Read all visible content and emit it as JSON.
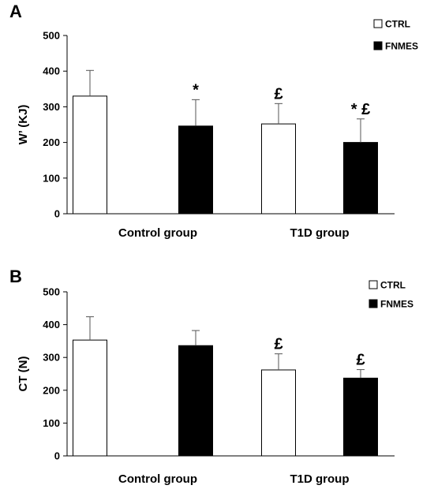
{
  "chart_data": [
    {
      "type": "bar",
      "panel": "A",
      "ylabel": "W’ (KJ)",
      "ylim": [
        0,
        500
      ],
      "yticks": [
        0,
        100,
        200,
        300,
        400,
        500
      ],
      "categories": [
        "Control group",
        "T1D group"
      ],
      "series": [
        {
          "name": "CTRL",
          "color": "#ffffff",
          "values": [
            330,
            252
          ],
          "errors": [
            72,
            57
          ]
        },
        {
          "name": "FNMES",
          "color": "#000000",
          "values": [
            246,
            200
          ],
          "errors": [
            74,
            66
          ]
        }
      ],
      "annotations": [
        [
          "",
          "£"
        ],
        [
          "*",
          "* £"
        ]
      ],
      "legend": "top-right",
      "grid": false
    },
    {
      "type": "bar",
      "panel": "B",
      "ylabel": "CT (N)",
      "ylim": [
        0,
        500
      ],
      "yticks": [
        0,
        100,
        200,
        300,
        400,
        500
      ],
      "categories": [
        "Control group",
        "T1D group"
      ],
      "series": [
        {
          "name": "CTRL",
          "color": "#ffffff",
          "values": [
            353,
            262
          ],
          "errors": [
            71,
            49
          ]
        },
        {
          "name": "FNMES",
          "color": "#000000",
          "values": [
            336,
            237
          ],
          "errors": [
            46,
            26
          ]
        }
      ],
      "annotations": [
        [
          "",
          "£"
        ],
        [
          "",
          "£"
        ]
      ],
      "legend": "top-right",
      "grid": false
    }
  ]
}
